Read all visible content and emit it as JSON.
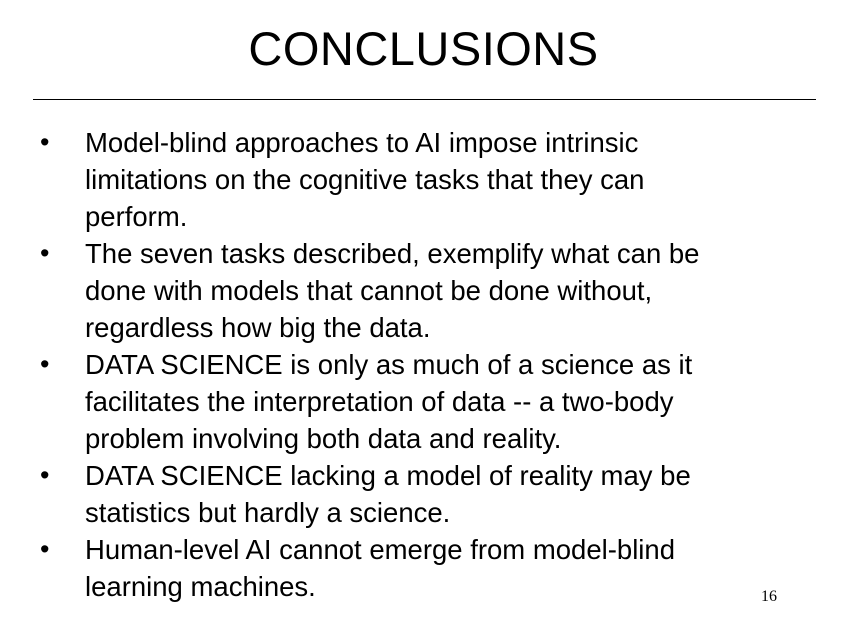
{
  "slide": {
    "title": "CONCLUSIONS",
    "bullet_symbol": "•",
    "bullets": [
      {
        "lines": [
          "Model-blind approaches to AI impose intrinsic",
          "limitations on the cognitive tasks that they can",
          "perform."
        ]
      },
      {
        "lines": [
          "The seven tasks described, exemplify what can be",
          "done with models that cannot be done without,",
          "regardless how big the data."
        ]
      },
      {
        "lines": [
          "DATA SCIENCE is only as much of a science as it",
          "facilitates the interpretation of data -- a two-body",
          "problem involving both data and reality."
        ]
      },
      {
        "lines": [
          "DATA SCIENCE lacking a model of reality may be",
          "statistics but hardly a science."
        ]
      },
      {
        "lines": [
          "Human-level AI cannot emerge from model-blind",
          "learning machines."
        ]
      }
    ],
    "page_number": "16"
  }
}
